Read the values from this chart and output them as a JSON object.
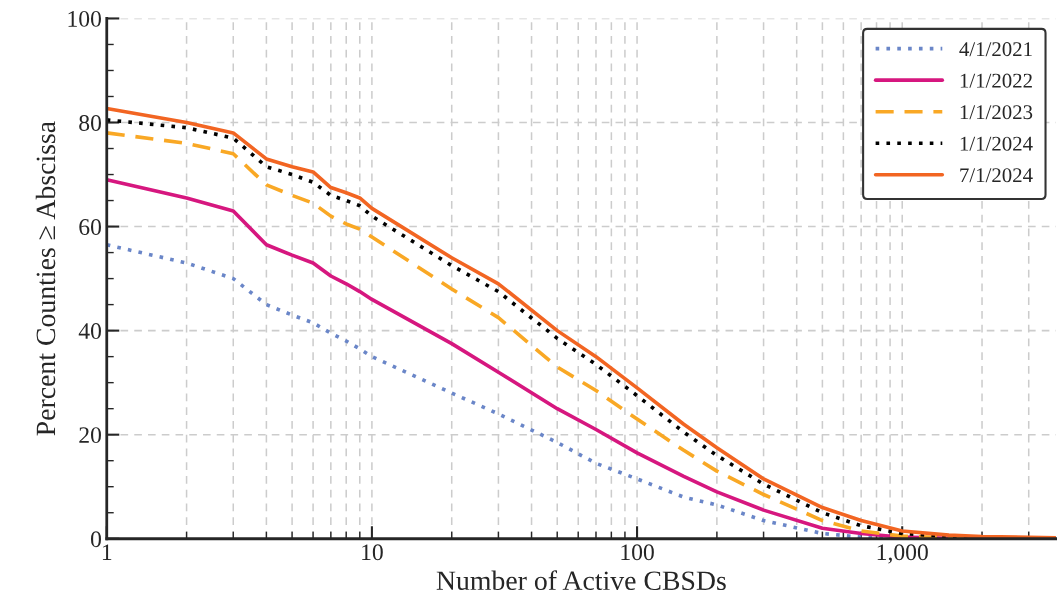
{
  "chart_data": {
    "type": "line",
    "xlabel": "Number of Active CBSDs",
    "ylabel": "Percent Counties ≥ Abscissa",
    "x": [
      1,
      2,
      3,
      4,
      5,
      6,
      7,
      8,
      9,
      10,
      20,
      30,
      50,
      70,
      100,
      150,
      200,
      300,
      500,
      700,
      1000,
      1500,
      2000,
      3800
    ],
    "log": "x",
    "xlim": [
      1,
      3800
    ],
    "xticks": [
      1,
      10,
      100,
      {
        "value": 1000,
        "label": "1,000"
      }
    ],
    "ylim": [
      0,
      100
    ],
    "yticks": [
      0,
      20,
      40,
      60,
      80,
      100
    ],
    "grid": true,
    "legend": "top right",
    "series": [
      {
        "name": "4/1/2021",
        "color": "#6a86c8",
        "line_style": "dotted",
        "values": [
          56.5,
          53,
          50,
          45,
          43,
          41.5,
          39.5,
          38,
          36.5,
          35,
          28,
          24,
          18.5,
          14.5,
          11.5,
          8,
          6.5,
          3.5,
          1,
          0.3,
          0.1,
          null,
          null,
          null
        ]
      },
      {
        "name": "1/1/2022",
        "color": "#d6177f",
        "line_style": "solid",
        "values": [
          69,
          65.5,
          63,
          56.5,
          54.5,
          53,
          50.5,
          49,
          47.5,
          46,
          37.5,
          32,
          25,
          21,
          16.5,
          12,
          9,
          5.5,
          2,
          1,
          0.3,
          0.1,
          0,
          0
        ]
      },
      {
        "name": "1/1/2023",
        "color": "#f9a825",
        "line_style": "dashed",
        "values": [
          78,
          76,
          74,
          68,
          66,
          64.5,
          62,
          60.5,
          59.5,
          58,
          48,
          42.5,
          33,
          28.5,
          23,
          17,
          13,
          8.5,
          3.5,
          1.5,
          0.5,
          0.2,
          0.1,
          0
        ]
      },
      {
        "name": "1/1/2024",
        "color": "#000000",
        "line_style": "dotted",
        "values": [
          80.5,
          79,
          77,
          71.5,
          70,
          68.5,
          66,
          65,
          64,
          62,
          52.5,
          47.5,
          38.5,
          33.5,
          27.5,
          20.5,
          16,
          10.5,
          5,
          2.5,
          1,
          0.4,
          0.2,
          0.1
        ]
      },
      {
        "name": "7/1/2024",
        "color": "#f26522",
        "line_style": "solid",
        "values": [
          82.7,
          80,
          78,
          73,
          71.5,
          70.5,
          67.5,
          66.5,
          65.5,
          63.5,
          54,
          49,
          40,
          35,
          29,
          22,
          17.5,
          11.5,
          6,
          3.5,
          1.5,
          0.7,
          0.4,
          0.2
        ]
      }
    ]
  }
}
